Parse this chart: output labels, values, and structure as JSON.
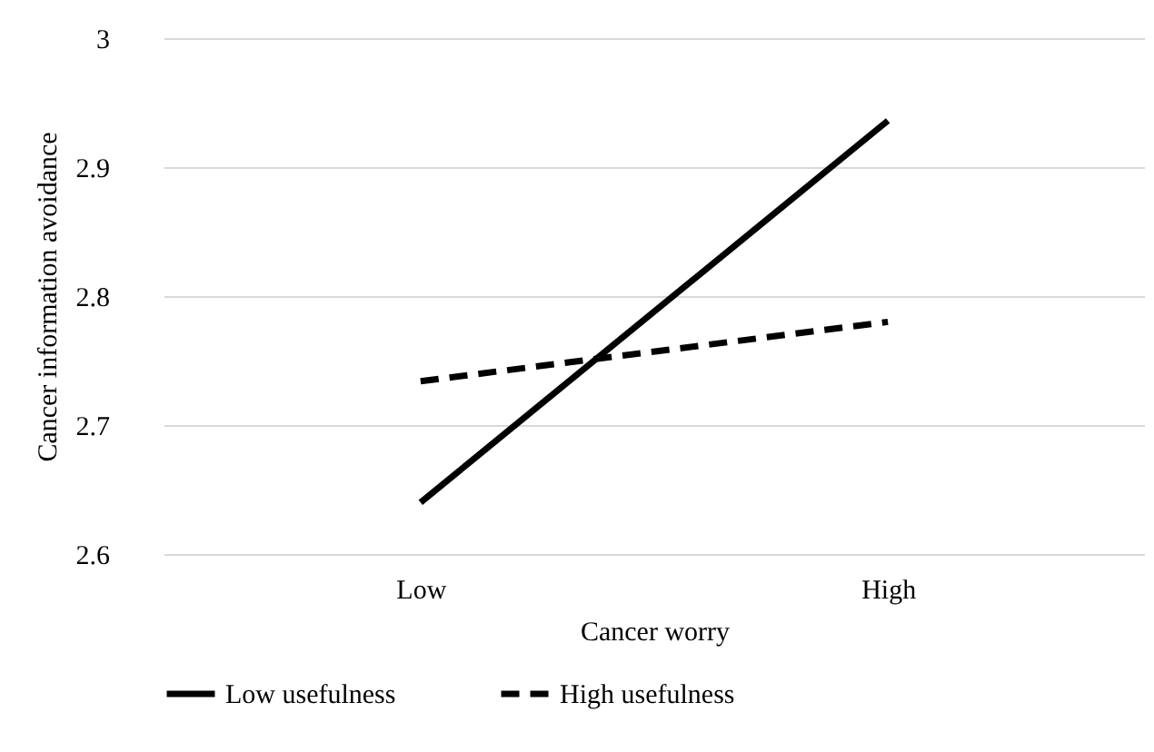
{
  "chart_data": {
    "type": "line",
    "xlabel": "Cancer worry",
    "ylabel": "Cancer information avoidance",
    "categories": [
      "Low",
      "High"
    ],
    "series": [
      {
        "name": "Low usefulness",
        "color": "#000000",
        "line_style": "solid",
        "values": [
          2.64,
          2.936
        ]
      },
      {
        "name": "High usefulness",
        "color": "#000000",
        "line_style": "dashed",
        "values": [
          2.734,
          2.78
        ]
      }
    ],
    "ylim": [
      2.6,
      3
    ],
    "yticks": [
      2.6,
      2.7,
      2.8,
      2.9,
      3
    ],
    "grid": "y",
    "legend": "bottom",
    "marker": "none"
  }
}
